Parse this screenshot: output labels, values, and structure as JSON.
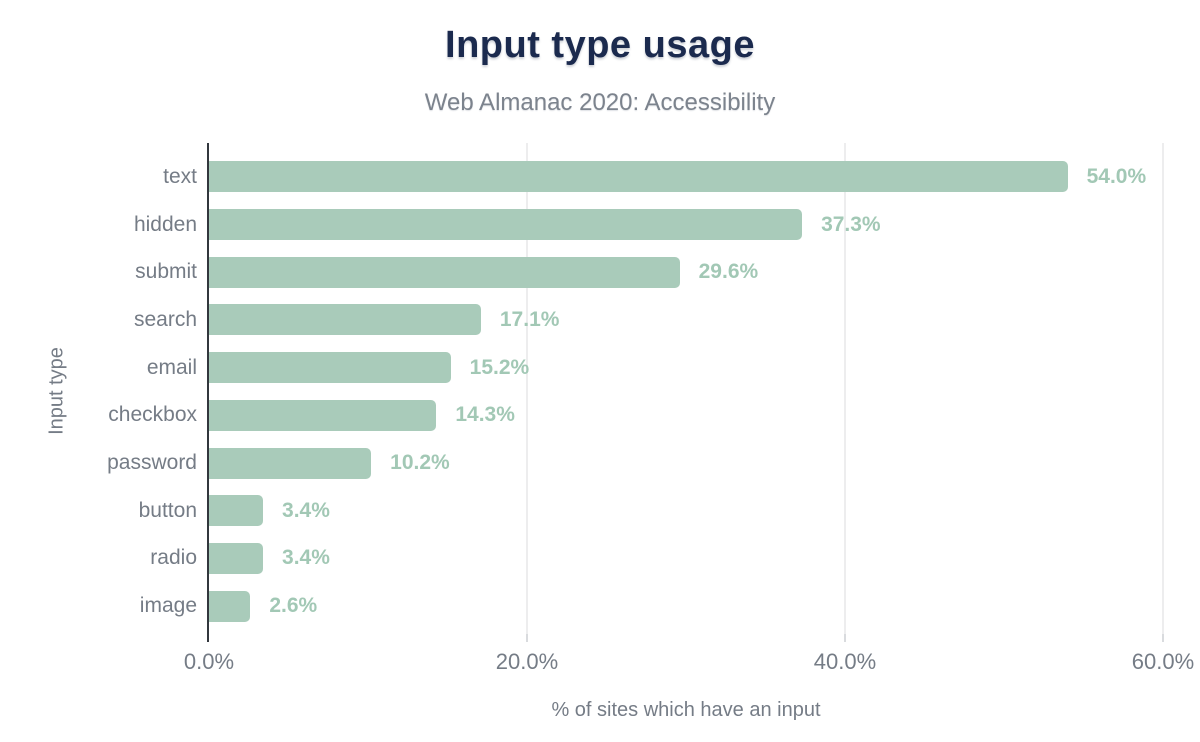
{
  "chart": {
    "title": "Input type usage",
    "subtitle": "Web Almanac 2020: Accessibility",
    "x_axis_label": "% of sites which have an input",
    "y_axis_label": "Input type"
  },
  "chart_data": {
    "type": "bar",
    "orientation": "horizontal",
    "title": "Input type usage",
    "subtitle": "Web Almanac 2020: Accessibility",
    "categories": [
      "text",
      "hidden",
      "submit",
      "search",
      "email",
      "checkbox",
      "password",
      "button",
      "radio",
      "image"
    ],
    "values": [
      54.0,
      37.3,
      29.6,
      17.1,
      15.2,
      14.3,
      10.2,
      3.4,
      3.4,
      2.6
    ],
    "value_labels": [
      "54.0%",
      "37.3%",
      "29.6%",
      "17.1%",
      "15.2%",
      "14.3%",
      "10.2%",
      "3.4%",
      "3.4%",
      "2.6%"
    ],
    "xlabel": "% of sites which have an input",
    "ylabel": "Input type",
    "xlim": [
      0,
      60
    ],
    "xticks": [
      0,
      20,
      40,
      60
    ],
    "xtick_labels": [
      "0.0%",
      "20.0%",
      "40.0%",
      "60.0%"
    ],
    "grid": "vertical-gridlines",
    "legend": "none",
    "colors": {
      "bar": "#a9cbba",
      "value_label": "#a2c8b5",
      "title": "#1b2a4e",
      "axis_text": "#757c86",
      "gridline": "#ededee",
      "axis_line": "#32373d",
      "background": "#ffffff"
    }
  }
}
